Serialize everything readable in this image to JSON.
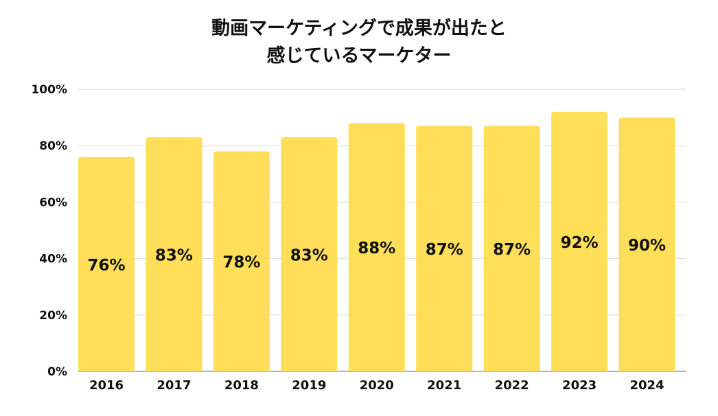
{
  "chart_data": {
    "type": "bar",
    "title_lines": [
      "動画マーケティングで成果が出たと",
      "感じているマーケター"
    ],
    "categories": [
      "2016",
      "2017",
      "2018",
      "2019",
      "2020",
      "2021",
      "2022",
      "2023",
      "2024"
    ],
    "values": [
      76,
      83,
      78,
      83,
      88,
      87,
      87,
      92,
      90
    ],
    "value_labels": [
      "76%",
      "83%",
      "78%",
      "83%",
      "88%",
      "87%",
      "87%",
      "92%",
      "90%"
    ],
    "y_ticks": [
      0,
      20,
      40,
      60,
      80,
      100
    ],
    "y_tick_labels": [
      "0%",
      "20%",
      "40%",
      "60%",
      "80%",
      "100%"
    ],
    "ylim": [
      0,
      100
    ],
    "grid": true,
    "legend": "none",
    "xlabel": "",
    "ylabel": "",
    "colors": {
      "bar": "#FFDE59",
      "grid": "#D9D9D9",
      "axis": "#999999",
      "text": "#111111"
    }
  }
}
